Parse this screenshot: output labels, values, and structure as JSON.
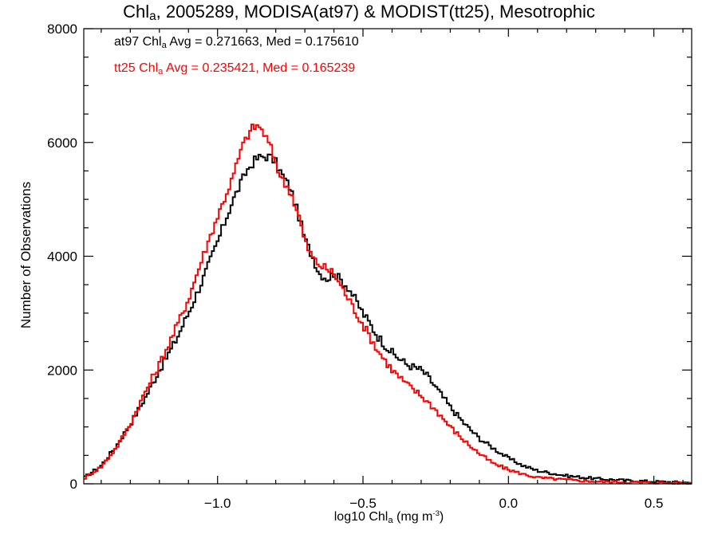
{
  "chart_data": {
    "type": "line",
    "style": "step",
    "title": {
      "prefix": "Chl",
      "sub": "a",
      "suffix": ", 2005289, MODISA(at97) & MODIST(tt25), Mesotrophic"
    },
    "xlabel": {
      "prefix": "log10 Chl",
      "sub": "a",
      "mid": " (mg m",
      "sup": "-3",
      "suffix": ")"
    },
    "ylabel": "Number of Observations",
    "xlim": [
      -1.46,
      0.63
    ],
    "ylim": [
      0,
      8000
    ],
    "x_ticks": [
      -1.0,
      -0.5,
      0.0,
      0.5
    ],
    "x_tick_labels": [
      "−1.0",
      "−0.5",
      "0.0",
      "0.5"
    ],
    "y_ticks": [
      0,
      2000,
      4000,
      6000,
      8000
    ],
    "y_tick_labels": [
      "0",
      "2000",
      "4000",
      "6000",
      "8000"
    ],
    "annotations": [
      {
        "prefix": "at97 Chl",
        "sub": "a",
        "suffix": " Avg = 0.271663, Med = 0.175610",
        "color": "#000000"
      },
      {
        "prefix": "tt25 Chl",
        "sub": "a",
        "suffix": " Avg = 0.235421, Med = 0.165239",
        "color": "#ff0000"
      }
    ],
    "series": [
      {
        "color": "#000000",
        "x": [
          -1.46,
          -1.4,
          -1.35,
          -1.3,
          -1.25,
          -1.2,
          -1.15,
          -1.1,
          -1.05,
          -1.0,
          -0.95,
          -0.9,
          -0.87,
          -0.85,
          -0.82,
          -0.8,
          -0.78,
          -0.75,
          -0.72,
          -0.7,
          -0.67,
          -0.65,
          -0.62,
          -0.6,
          -0.55,
          -0.5,
          -0.45,
          -0.4,
          -0.35,
          -0.3,
          -0.28,
          -0.25,
          -0.2,
          -0.15,
          -0.1,
          -0.05,
          0.0,
          0.05,
          0.1,
          0.2,
          0.3,
          0.4,
          0.5,
          0.63
        ],
        "y": [
          100,
          320,
          650,
          1050,
          1500,
          2000,
          2450,
          3000,
          3600,
          4250,
          4950,
          5500,
          5700,
          5750,
          5750,
          5650,
          5450,
          5200,
          4700,
          4300,
          3950,
          3700,
          3600,
          3700,
          3450,
          3000,
          2600,
          2300,
          2100,
          2000,
          1900,
          1700,
          1350,
          1050,
          800,
          620,
          450,
          320,
          230,
          140,
          90,
          60,
          40,
          20
        ]
      },
      {
        "color": "#ff0000",
        "x": [
          -1.46,
          -1.4,
          -1.35,
          -1.3,
          -1.25,
          -1.2,
          -1.15,
          -1.1,
          -1.05,
          -1.0,
          -0.95,
          -0.92,
          -0.9,
          -0.88,
          -0.86,
          -0.84,
          -0.82,
          -0.8,
          -0.78,
          -0.75,
          -0.72,
          -0.7,
          -0.67,
          -0.65,
          -0.6,
          -0.55,
          -0.5,
          -0.45,
          -0.4,
          -0.35,
          -0.3,
          -0.25,
          -0.2,
          -0.15,
          -0.1,
          -0.05,
          0.0,
          0.05,
          0.1,
          0.2,
          0.3,
          0.4,
          0.5,
          0.63
        ],
        "y": [
          90,
          300,
          620,
          1050,
          1600,
          2100,
          2650,
          3250,
          4000,
          4700,
          5350,
          5850,
          6100,
          6250,
          6300,
          6150,
          5950,
          5650,
          5350,
          5150,
          4700,
          4250,
          3950,
          3850,
          3700,
          3250,
          2800,
          2350,
          2000,
          1750,
          1550,
          1300,
          1000,
          750,
          530,
          350,
          250,
          170,
          110,
          70,
          40,
          30,
          20,
          10
        ]
      }
    ]
  }
}
